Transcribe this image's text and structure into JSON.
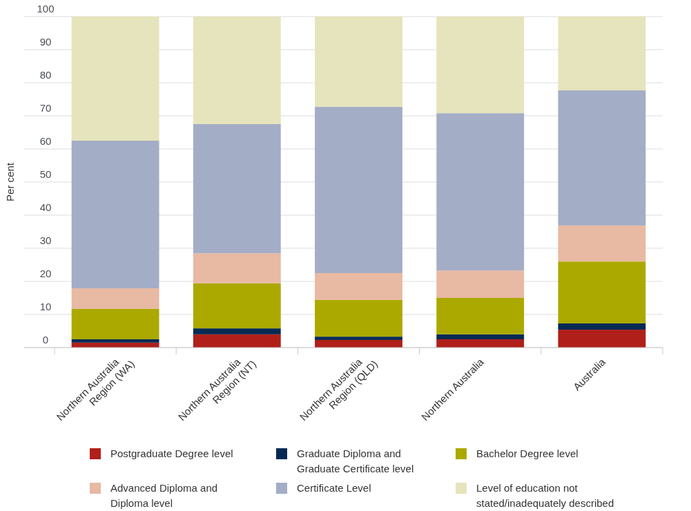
{
  "chart_data": {
    "type": "bar",
    "stacked": true,
    "ylabel": "Per cent",
    "categories": [
      "Northern Australia Region (WA)",
      "Northern Australia Region (NT)",
      "Northern Australia Region (QLD)",
      "Northern Australia",
      "Australia"
    ],
    "ylim": [
      0,
      100
    ],
    "yticks": [
      0,
      10,
      20,
      30,
      40,
      50,
      60,
      70,
      80,
      90,
      100
    ],
    "grid": "y",
    "legend": "bottom",
    "series": [
      {
        "name": "Postgraduate Degree level",
        "color": "#b01f1a",
        "values": [
          1.5,
          4.0,
          2.3,
          2.5,
          5.4
        ]
      },
      {
        "name": "Graduate Diploma and Graduate Certificate level",
        "color": "#062a54",
        "values": [
          1.0,
          1.8,
          1.0,
          1.5,
          1.9
        ]
      },
      {
        "name": "Bachelor Degree level",
        "color": "#aba900",
        "values": [
          9.2,
          13.6,
          11.1,
          11.0,
          18.7
        ]
      },
      {
        "name": "Advanced Diploma and Diploma level",
        "color": "#e8b9a3",
        "values": [
          6.2,
          9.1,
          8.1,
          8.3,
          10.9
        ]
      },
      {
        "name": "Certificate Level",
        "color": "#a3adc6",
        "values": [
          44.6,
          39.0,
          50.2,
          47.5,
          40.8
        ]
      },
      {
        "name": "Level of education not stated/inadequately described",
        "color": "#e5e4bc",
        "values": [
          37.5,
          32.5,
          27.3,
          29.2,
          22.3
        ]
      }
    ]
  }
}
